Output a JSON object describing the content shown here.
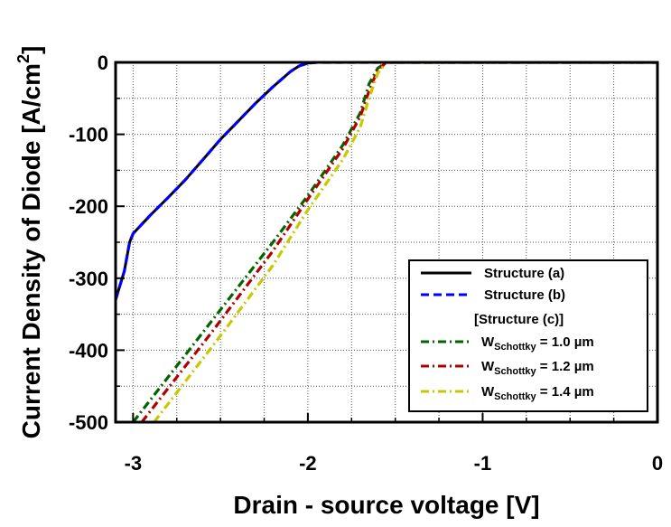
{
  "chart_data": {
    "type": "line",
    "xlabel": "Drain - source voltage [V]",
    "ylabel_main": "Current Density of Diode [A/cm",
    "ylabel_sup": "2",
    "ylabel_end": "]",
    "xlim": [
      -3.1,
      0
    ],
    "ylim": [
      -500,
      0
    ],
    "x_ticks": [
      -3,
      -2,
      -1,
      0
    ],
    "x_tick_labels": [
      "-3",
      "-2",
      "-1",
      "0"
    ],
    "y_ticks": [
      0,
      -100,
      -200,
      -300,
      -400,
      -500
    ],
    "y_tick_labels": [
      "0",
      "-100",
      "-200",
      "-300",
      "-400",
      "-500"
    ],
    "grid": true,
    "legend_position": "bottom-right",
    "legend_group_header": "[Structure (c)]",
    "series": [
      {
        "name": "Structure (a)",
        "legend_prefix": "",
        "legend_sub": "",
        "legend_suffix": "",
        "color": "#000000",
        "style": "solid",
        "points": [
          [
            -3.1,
            -330
          ],
          [
            -3.05,
            -290
          ],
          [
            -3.02,
            -250
          ],
          [
            -3.0,
            -238
          ],
          [
            -2.9,
            -212
          ],
          [
            -2.8,
            -188
          ],
          [
            -2.7,
            -163
          ],
          [
            -2.6,
            -135
          ],
          [
            -2.5,
            -107
          ],
          [
            -2.4,
            -82
          ],
          [
            -2.3,
            -57
          ],
          [
            -2.2,
            -34
          ],
          [
            -2.1,
            -13
          ],
          [
            -2.05,
            -5
          ],
          [
            -2.0,
            -1
          ],
          [
            -1.95,
            0
          ],
          [
            0,
            0
          ]
        ]
      },
      {
        "name": "Structure (b)",
        "legend_prefix": "",
        "legend_sub": "",
        "legend_suffix": "",
        "color": "#0000ff",
        "style": "dash",
        "points": [
          [
            -3.1,
            -330
          ],
          [
            -3.05,
            -290
          ],
          [
            -3.02,
            -250
          ],
          [
            -3.0,
            -238
          ],
          [
            -2.9,
            -212
          ],
          [
            -2.8,
            -188
          ],
          [
            -2.7,
            -163
          ],
          [
            -2.6,
            -135
          ],
          [
            -2.5,
            -107
          ],
          [
            -2.4,
            -82
          ],
          [
            -2.3,
            -57
          ],
          [
            -2.2,
            -34
          ],
          [
            -2.1,
            -13
          ],
          [
            -2.05,
            -5
          ],
          [
            -2.0,
            -1
          ],
          [
            -1.95,
            0
          ],
          [
            0,
            0
          ]
        ]
      },
      {
        "name": "W Schottky = 1.0 µm",
        "legend_prefix": "W",
        "legend_sub": "Schottky",
        "legend_suffix": " = 1.0 µm",
        "color": "#006400",
        "style": "dashdot",
        "points": [
          [
            -3.0,
            -500
          ],
          [
            -2.6,
            -375
          ],
          [
            -2.2,
            -250
          ],
          [
            -2.0,
            -185
          ],
          [
            -1.8,
            -115
          ],
          [
            -1.7,
            -70
          ],
          [
            -1.65,
            -30
          ],
          [
            -1.6,
            -8
          ],
          [
            -1.55,
            0
          ],
          [
            0,
            0
          ]
        ]
      },
      {
        "name": "W Schottky = 1.2 µm",
        "legend_prefix": "W",
        "legend_sub": "Schottky",
        "legend_suffix": " = 1.2 µm",
        "color": "#b00000",
        "style": "dashdot",
        "points": [
          [
            -2.95,
            -500
          ],
          [
            -2.55,
            -375
          ],
          [
            -2.2,
            -262
          ],
          [
            -2.0,
            -190
          ],
          [
            -1.8,
            -120
          ],
          [
            -1.7,
            -75
          ],
          [
            -1.65,
            -40
          ],
          [
            -1.6,
            -10
          ],
          [
            -1.55,
            0
          ],
          [
            0,
            0
          ]
        ]
      },
      {
        "name": "W Schottky = 1.4 µm",
        "legend_prefix": "W",
        "legend_sub": "Schottky",
        "legend_suffix": " = 1.4 µm",
        "color": "#c8c800",
        "style": "dashdot",
        "points": [
          [
            -2.88,
            -500
          ],
          [
            -2.5,
            -380
          ],
          [
            -2.2,
            -282
          ],
          [
            -2.0,
            -205
          ],
          [
            -1.8,
            -135
          ],
          [
            -1.7,
            -90
          ],
          [
            -1.65,
            -50
          ],
          [
            -1.6,
            -15
          ],
          [
            -1.55,
            0
          ],
          [
            0,
            0
          ]
        ]
      }
    ]
  }
}
